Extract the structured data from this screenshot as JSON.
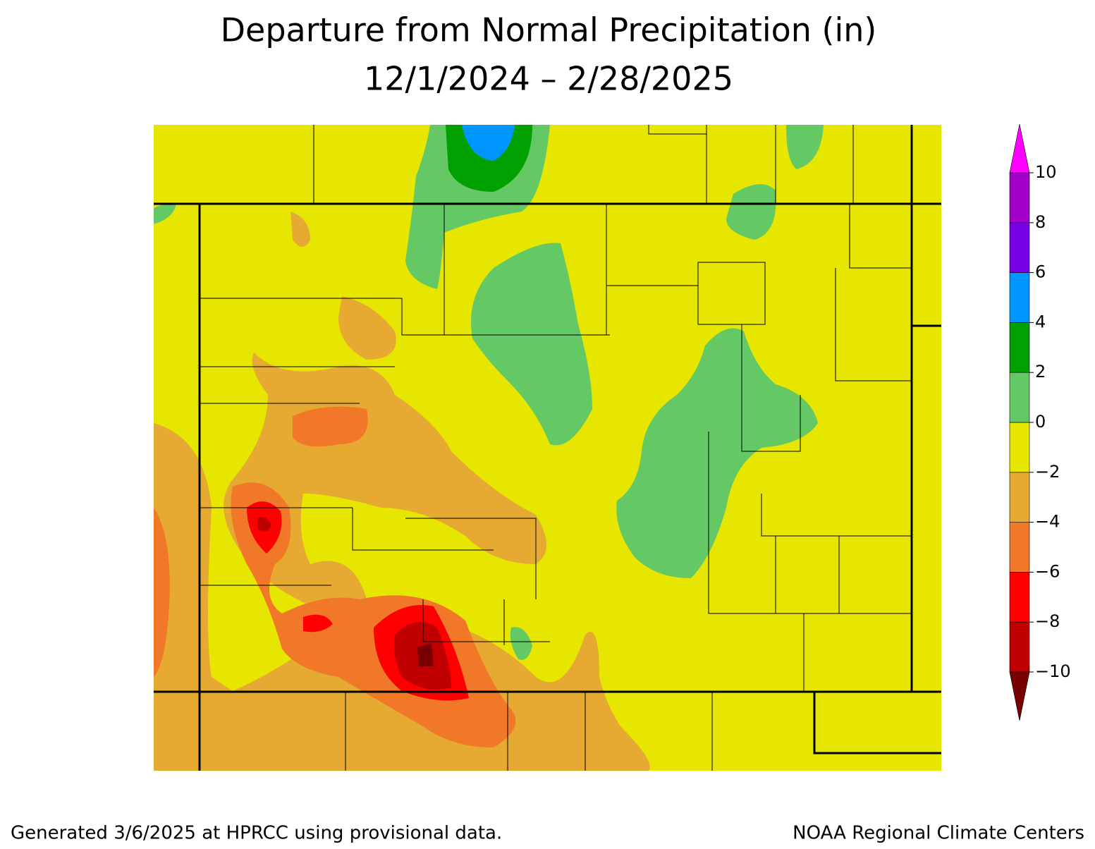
{
  "title": "Departure from Normal Precipitation (in)",
  "subtitle": "12/1/2024 – 2/28/2025",
  "legend": {
    "ticks": [
      {
        "value": -10,
        "label": "−10"
      },
      {
        "value": -8,
        "label": "−8"
      },
      {
        "value": -6,
        "label": "−6"
      },
      {
        "value": -4,
        "label": "−4"
      },
      {
        "value": -2,
        "label": "−2"
      },
      0,
      2,
      4,
      6,
      8,
      10
    ],
    "colors": [
      "#780000",
      "#c00000",
      "#ff0000",
      "#f07828",
      "#e6aa32",
      "#e6e600",
      "#64c864",
      "#00a000",
      "#0096ff",
      "#7800e6",
      "#a000c8",
      "#ff00ff"
    ]
  },
  "footer_left": "Generated 3/6/2025 at HPRCC using provisional data.",
  "footer_right": "NOAA Regional Climate Centers"
}
